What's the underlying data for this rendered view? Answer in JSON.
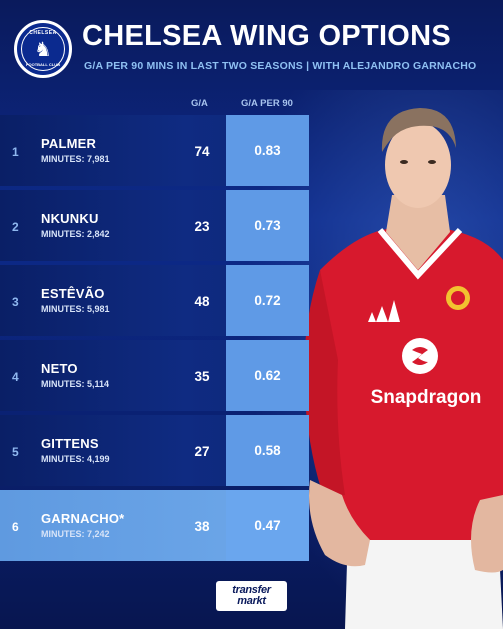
{
  "header": {
    "title": "CHELSEA WING OPTIONS",
    "subtitle": "G/A PER 90 MINS IN LAST TWO SEASONS | WITH ALEJANDRO GARNACHO",
    "crest_top": "CHELSEA",
    "crest_bottom": "FOOTBALL CLUB"
  },
  "table": {
    "columns": [
      "G/A",
      "G/A PER 90"
    ],
    "rows": [
      {
        "rank": "1",
        "name": "PALMER",
        "minutes": "MINUTES: 7,981",
        "ga": "74",
        "ga_per_90": "0.83"
      },
      {
        "rank": "2",
        "name": "NKUNKU",
        "minutes": "MINUTES: 2,842",
        "ga": "23",
        "ga_per_90": "0.73"
      },
      {
        "rank": "3",
        "name": "ESTÊVÃO",
        "minutes": "MINUTES: 5,981",
        "ga": "48",
        "ga_per_90": "0.72"
      },
      {
        "rank": "4",
        "name": "NETO",
        "minutes": "MINUTES: 5,114",
        "ga": "35",
        "ga_per_90": "0.62"
      },
      {
        "rank": "5",
        "name": "GITTENS",
        "minutes": "MINUTES: 4,199",
        "ga": "27",
        "ga_per_90": "0.58"
      },
      {
        "rank": "6",
        "name": "GARNACHO*",
        "minutes": "MINUTES: 7,242",
        "ga": "38",
        "ga_per_90": "0.47"
      }
    ]
  },
  "shirt_sponsor": "Snapdragon",
  "footer_logo": {
    "line1": "transfer",
    "line2": "markt"
  },
  "colors": {
    "background": "#0d2a8a",
    "accent": "#5f9ae6",
    "highlight_row": "#6aa6ee",
    "shirt": "#d7192d"
  }
}
